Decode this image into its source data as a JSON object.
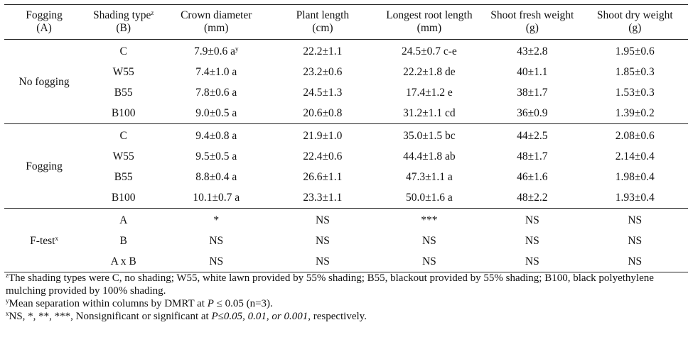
{
  "headers": {
    "fogging": [
      "Fogging",
      "(A)"
    ],
    "shading": [
      "Shading type",
      "z",
      "(B)"
    ],
    "crown": [
      "Crown diameter",
      "(mm)"
    ],
    "plant": [
      "Plant length",
      "(cm)"
    ],
    "root": [
      "Longest root length",
      "(mm)"
    ],
    "fresh": [
      "Shoot fresh weight",
      "(g)"
    ],
    "dry": [
      "Shoot dry weight",
      "(g)"
    ]
  },
  "groups": [
    {
      "label": "No fogging",
      "rows": [
        {
          "type": "C",
          "crown": "7.9±0.6 a",
          "crown_sup": "y",
          "plant": "22.2±1.1",
          "root": "24.5±0.7 c-e",
          "fresh": "43±2.8",
          "dry": "1.95±0.6"
        },
        {
          "type": "W55",
          "crown": "7.4±1.0 a",
          "crown_sup": "",
          "plant": "23.2±0.6",
          "root": "22.2±1.8 de",
          "fresh": "40±1.1",
          "dry": "1.85±0.3"
        },
        {
          "type": "B55",
          "crown": "7.8±0.6 a",
          "crown_sup": "",
          "plant": "24.5±1.3",
          "root": "17.4±1.2 e",
          "fresh": "38±1.7",
          "dry": "1.53±0.3"
        },
        {
          "type": "B100",
          "crown": "9.0±0.5 a",
          "crown_sup": "",
          "plant": "20.6±0.8",
          "root": "31.2±1.1 cd",
          "fresh": "36±0.9",
          "dry": "1.39±0.2"
        }
      ]
    },
    {
      "label": "Fogging",
      "rows": [
        {
          "type": "C",
          "crown": "9.4±0.8 a",
          "crown_sup": "",
          "plant": "21.9±1.0",
          "root": "35.0±1.5 bc",
          "fresh": "44±2.5",
          "dry": "2.08±0.6"
        },
        {
          "type": "W55",
          "crown": "9.5±0.5 a",
          "crown_sup": "",
          "plant": "22.4±0.6",
          "root": "44.4±1.8 ab",
          "fresh": "48±1.7",
          "dry": "2.14±0.4"
        },
        {
          "type": "B55",
          "crown": "8.8±0.4 a",
          "crown_sup": "",
          "plant": "26.6±1.1",
          "root": "47.3±1.1 a",
          "fresh": "46±1.6",
          "dry": "1.98±0.4"
        },
        {
          "type": "B100",
          "crown": "10.1±0.7 a",
          "crown_sup": "",
          "plant": "23.3±1.1",
          "root": "50.0±1.6 a",
          "fresh": "48±2.2",
          "dry": "1.93±0.4"
        }
      ]
    },
    {
      "label": "F-test",
      "label_sup": "x",
      "rows": [
        {
          "type": "A",
          "crown": "*",
          "crown_sup": "",
          "plant": "NS",
          "root": "***",
          "fresh": "NS",
          "dry": "NS"
        },
        {
          "type": "B",
          "crown": "NS",
          "crown_sup": "",
          "plant": "NS",
          "root": "NS",
          "fresh": "NS",
          "dry": "NS"
        },
        {
          "type": "A x B",
          "crown": "NS",
          "crown_sup": "",
          "plant": "NS",
          "root": "NS",
          "fresh": "NS",
          "dry": "NS"
        }
      ]
    }
  ],
  "notes": {
    "z_mark": "z",
    "z_text": "The shading types were C, no shading; W55, white lawn provided by 55% shading; B55, blackout provided by 55% shading; B100, black polyethylene mulching provided by 100% shading.",
    "y_mark": "y",
    "y_text_before": "Mean separation within columns by DMRT at ",
    "y_text_italic": "P",
    "y_text_after": " ≤ 0.05 (n=3).",
    "x_mark": "x",
    "x_text_before": "NS, *, **, ***, Nonsignificant or significant at ",
    "x_text_italic": "P≤0.05, 0.01, or 0.001",
    "x_text_after": ", respectively."
  }
}
